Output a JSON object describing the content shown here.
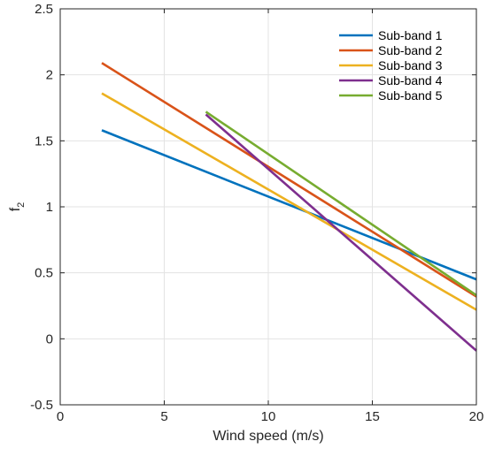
{
  "chart_data": {
    "type": "line",
    "xlabel": "Wind speed (m/s)",
    "ylabel": "f",
    "ylabel_sub": "2",
    "xlim": [
      0,
      20
    ],
    "ylim": [
      -0.5,
      2.5
    ],
    "xticks": [
      0,
      5,
      10,
      15,
      20
    ],
    "yticks": [
      -0.5,
      0,
      0.5,
      1,
      1.5,
      2,
      2.5
    ],
    "ytick_labels": [
      "-0.5",
      "0",
      "0.5",
      "1",
      "1.5",
      "2",
      "2.5"
    ],
    "grid": true,
    "legend_position": "top-right",
    "series": [
      {
        "name": "Sub-band 1",
        "color": "#0072BD",
        "x": [
          2,
          20
        ],
        "y": [
          1.58,
          0.45
        ]
      },
      {
        "name": "Sub-band 2",
        "color": "#D95319",
        "x": [
          2,
          20
        ],
        "y": [
          2.09,
          0.32
        ]
      },
      {
        "name": "Sub-band 3",
        "color": "#EDB120",
        "x": [
          2,
          20
        ],
        "y": [
          1.86,
          0.22
        ]
      },
      {
        "name": "Sub-band 4",
        "color": "#7E2F8E",
        "x": [
          7,
          20
        ],
        "y": [
          1.7,
          -0.09
        ]
      },
      {
        "name": "Sub-band 5",
        "color": "#77AC30",
        "x": [
          7,
          20
        ],
        "y": [
          1.72,
          0.33
        ]
      }
    ]
  }
}
